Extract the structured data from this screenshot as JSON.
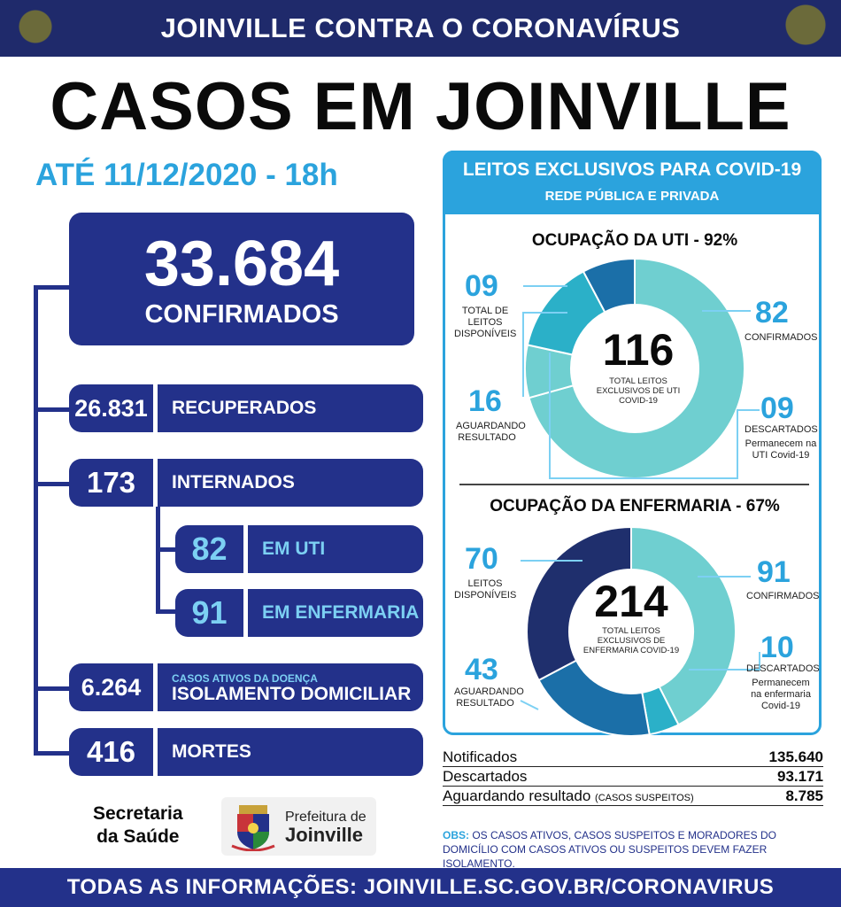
{
  "banner": {
    "title": "JOINVILLE CONTRA O CORONAVÍRUS"
  },
  "header": {
    "title": "CASOS EM JOINVILLE",
    "date": "ATÉ 11/12/2020 - 18h"
  },
  "confirmed": {
    "value": "33.684",
    "label": "CONFIRMADOS"
  },
  "stats": {
    "recovered": {
      "value": "26.831",
      "label": "RECUPERADOS"
    },
    "hospitalized": {
      "value": "173",
      "label": "INTERNADOS"
    },
    "icu": {
      "value": "82",
      "label": "EM UTI"
    },
    "ward": {
      "value": "91",
      "label": "EM ENFERMARIA"
    },
    "home_isolation": {
      "value": "6.264",
      "sublabel": "CASOS ATIVOS DA DOENÇA",
      "label": "ISOLAMENTO DOMICILIAR"
    },
    "deaths": {
      "value": "416",
      "label": "MORTES"
    }
  },
  "leitos": {
    "title": "LEITOS EXCLUSIVOS PARA COVID-19",
    "subtitle": "REDE PÚBLICA E PRIVADA",
    "uti": {
      "title": "OCUPAÇÃO DA UTI - 92%",
      "total": "116",
      "total_label": "TOTAL LEITOS EXCLUSIVOS DE UTI COVID-19",
      "available": {
        "value": "09",
        "label": "TOTAL DE LEITOS DISPONÍVEIS"
      },
      "awaiting": {
        "value": "16",
        "label": "AGUARDANDO RESULTADO"
      },
      "confirmed": {
        "value": "82",
        "label": "CONFIRMADOS"
      },
      "discarded": {
        "value": "09",
        "label": "DESCARTADOS",
        "note": "Permanecem na UTI Covid-19"
      }
    },
    "ward": {
      "title": "OCUPAÇÃO DA ENFERMARIA - 67%",
      "total": "214",
      "total_label": "TOTAL LEITOS EXCLUSIVOS DE ENFERMARIA COVID-19",
      "available": {
        "value": "70",
        "label": "LEITOS DISPONÍVEIS"
      },
      "awaiting": {
        "value": "43",
        "label": "AGUARDANDO RESULTADO"
      },
      "confirmed": {
        "value": "91",
        "label": "CONFIRMADOS"
      },
      "discarded": {
        "value": "10",
        "label": "DESCARTADOS",
        "note": "Permanecem na enfermaria Covid-19"
      }
    }
  },
  "summary": {
    "notified": {
      "label": "Notificados",
      "value": "135.640"
    },
    "discarded": {
      "label": "Descartados",
      "value": "93.171"
    },
    "awaiting": {
      "label": "Aguardando resultado",
      "note": "(CASOS SUSPEITOS)",
      "value": "8.785"
    }
  },
  "obs": {
    "prefix": "OBS:",
    "text": "OS CASOS ATIVOS, CASOS SUSPEITOS E MORADORES DO DOMICÍLIO COM CASOS ATIVOS OU SUSPEITOS DEVEM FAZER ISOLAMENTO."
  },
  "footer": {
    "secretaria_line1": "Secretaria",
    "secretaria_line2": "da Saúde",
    "prefeitura_line1": "Prefeitura de",
    "prefeitura_line2": "Joinville",
    "url_text": "TODAS AS INFORMAÇÕES:  JOINVILLE.SC.GOV.BR/CORONAVIRUS"
  },
  "colors": {
    "navy": "#23318a",
    "sky": "#2ba3dd",
    "light_teal": "#6fcfd0",
    "mid_blue": "#1b6fa8",
    "dark_navy": "#1f2f6d",
    "teal": "#2bb0c8"
  },
  "donuts": {
    "uti": [
      {
        "name": "confirmed",
        "value": 82,
        "color": "#6fcfd0"
      },
      {
        "name": "discarded",
        "value": 9,
        "color": "#6fcfd0"
      },
      {
        "name": "awaiting",
        "value": 16,
        "color": "#2bb0c8"
      },
      {
        "name": "available_mid",
        "value": 9,
        "color": "#1b6fa8"
      }
    ],
    "ward": [
      {
        "name": "confirmed",
        "value": 91,
        "color": "#6fcfd0"
      },
      {
        "name": "discarded",
        "value": 10,
        "color": "#2bb0c8"
      },
      {
        "name": "awaiting",
        "value": 43,
        "color": "#1b6fa8"
      },
      {
        "name": "available",
        "value": 70,
        "color": "#1f2f6d"
      }
    ]
  }
}
